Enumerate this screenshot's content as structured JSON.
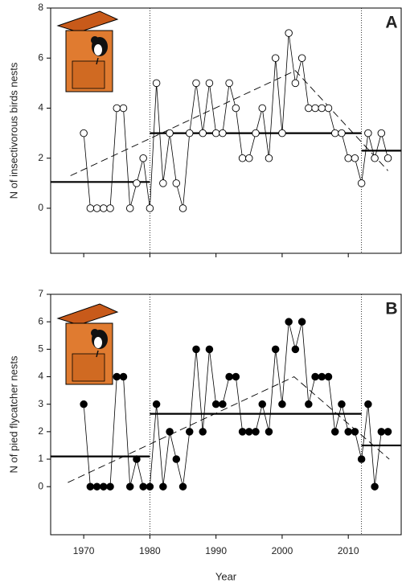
{
  "chart_data": [
    {
      "type": "line",
      "panel_label": "A",
      "y_label": "N of insectivorous birds nests",
      "x": [
        1970,
        1971,
        1972,
        1973,
        1974,
        1975,
        1976,
        1977,
        1978,
        1979,
        1980,
        1981,
        1982,
        1983,
        1984,
        1985,
        1986,
        1987,
        1988,
        1989,
        1990,
        1991,
        1992,
        1993,
        1994,
        1995,
        1996,
        1997,
        1998,
        1999,
        2000,
        2001,
        2002,
        2003,
        2004,
        2005,
        2006,
        2007,
        2008,
        2009,
        2010,
        2011,
        2012,
        2013,
        2014,
        2015,
        2016
      ],
      "series": [
        {
          "marker": "open",
          "color": "#000000",
          "values": [
            3,
            0,
            0,
            0,
            0,
            4,
            4,
            0,
            1,
            2,
            0,
            5,
            1,
            3,
            1,
            0,
            3,
            5,
            3,
            5,
            3,
            3,
            5,
            4,
            2,
            2,
            3,
            4,
            2,
            6,
            3,
            7,
            5,
            6,
            4,
            4,
            4,
            4,
            3,
            3,
            2,
            2,
            1,
            3,
            2,
            3,
            2
          ]
        }
      ],
      "mean_segments": [
        {
          "x": [
            1965,
            1980
          ],
          "value": 1.05
        },
        {
          "x": [
            1980,
            2012
          ],
          "value": 3.0
        },
        {
          "x": [
            2012,
            2018
          ],
          "value": 2.3
        }
      ],
      "trend": {
        "x": [
          1968,
          2002,
          2016
        ],
        "values": [
          1.3,
          5.5,
          1.5
        ]
      },
      "breaks": [
        1980,
        2012
      ],
      "xlim": [
        1965,
        2018
      ],
      "xticks": [
        1970,
        1980,
        1990,
        2000,
        2010
      ],
      "ylim": [
        -1.8,
        8
      ],
      "yticks": [
        0,
        2,
        4,
        6,
        8
      ]
    },
    {
      "type": "line",
      "panel_label": "B",
      "y_label": "N of pied flycatcher nests",
      "x_label": "Year",
      "x": [
        1970,
        1971,
        1972,
        1973,
        1974,
        1975,
        1976,
        1977,
        1978,
        1979,
        1980,
        1981,
        1982,
        1983,
        1984,
        1985,
        1986,
        1987,
        1988,
        1989,
        1990,
        1991,
        1992,
        1993,
        1994,
        1995,
        1996,
        1997,
        1998,
        1999,
        2000,
        2001,
        2002,
        2003,
        2004,
        2005,
        2006,
        2007,
        2008,
        2009,
        2010,
        2011,
        2012,
        2013,
        2014,
        2015,
        2016
      ],
      "series": [
        {
          "marker": "filled",
          "color": "#000000",
          "values": [
            3,
            0,
            0,
            0,
            0,
            4,
            4,
            0,
            1,
            0,
            0,
            3,
            0,
            2,
            1,
            0,
            2,
            5,
            2,
            5,
            3,
            3,
            4,
            4,
            2,
            2,
            2,
            3,
            2,
            5,
            3,
            6,
            5,
            6,
            3,
            4,
            4,
            4,
            2,
            3,
            2,
            2,
            1,
            3,
            0,
            2,
            2
          ]
        }
      ],
      "mean_segments": [
        {
          "x": [
            1965,
            1980
          ],
          "value": 1.1
        },
        {
          "x": [
            1980,
            2012
          ],
          "value": 2.65
        },
        {
          "x": [
            2012,
            2018
          ],
          "value": 1.5
        }
      ],
      "trend": {
        "x": [
          1967.6,
          2001.8,
          2016.2
        ],
        "values": [
          0.15,
          4.0,
          1.0
        ]
      },
      "breaks": [
        1980,
        2012
      ],
      "xlim": [
        1965,
        2018
      ],
      "xticks": [
        1970,
        1980,
        1990,
        2000,
        2010
      ],
      "ylim": [
        -1.75,
        7
      ],
      "yticks": [
        0,
        1,
        2,
        3,
        4,
        5,
        6,
        7
      ]
    }
  ]
}
